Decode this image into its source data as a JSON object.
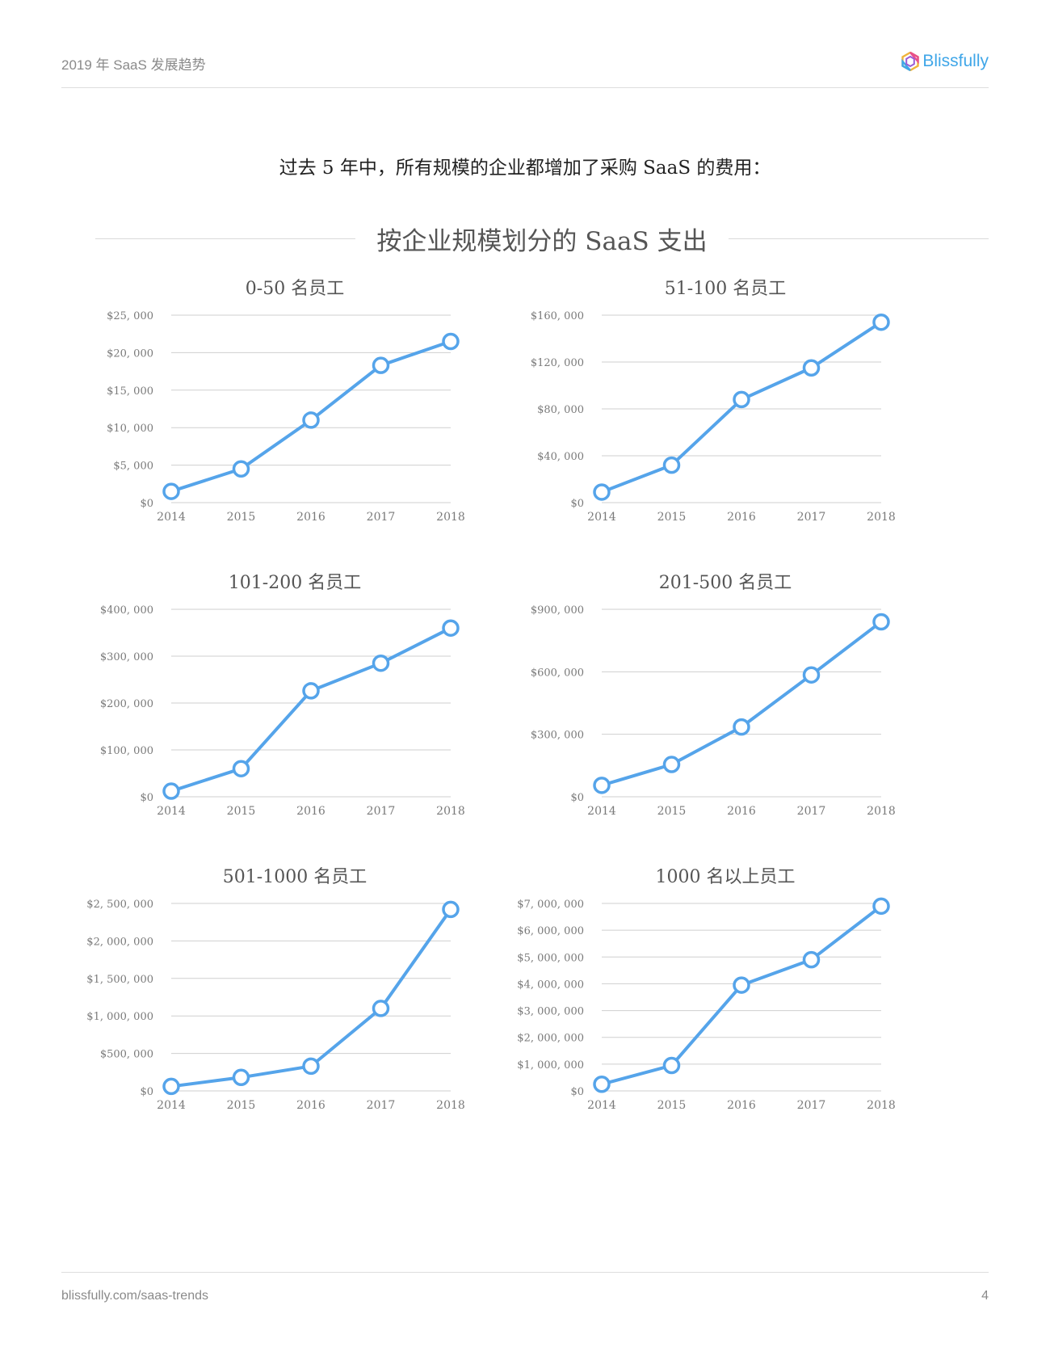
{
  "header": {
    "title": "2019 年 SaaS 发展趋势",
    "logo_text": "Blissfully"
  },
  "intro_text": "过去 5 年中，所有规模的企业都增加了采购 SaaS 的费用：",
  "section_title": "按企业规模划分的 SaaS 支出",
  "colors": {
    "line": "#55a4ea",
    "grid": "#cfcfcf",
    "axis_text": "#7a7a7a",
    "title_text": "#555555"
  },
  "chart_data": [
    {
      "type": "line",
      "title": "0-50 名员工",
      "categories": [
        "2014",
        "2015",
        "2016",
        "2017",
        "2018"
      ],
      "values": [
        1500,
        4500,
        11000,
        18300,
        21500
      ],
      "ylim": [
        0,
        25000
      ],
      "ytick_values": [
        0,
        5000,
        10000,
        15000,
        20000,
        25000
      ],
      "yticks": [
        "$0",
        "$5, 000",
        "$10, 000",
        "$15, 000",
        "$20, 000",
        "$25, 000"
      ]
    },
    {
      "type": "line",
      "title": "51-100 名员工",
      "categories": [
        "2014",
        "2015",
        "2016",
        "2017",
        "2018"
      ],
      "values": [
        9000,
        32000,
        88000,
        115000,
        154000
      ],
      "ylim": [
        0,
        160000
      ],
      "ytick_values": [
        0,
        40000,
        80000,
        120000,
        160000
      ],
      "yticks": [
        "$0",
        "$40, 000",
        "$80, 000",
        "$120, 000",
        "$160, 000"
      ]
    },
    {
      "type": "line",
      "title": "101-200 名员工",
      "categories": [
        "2014",
        "2015",
        "2016",
        "2017",
        "2018"
      ],
      "values": [
        12000,
        60000,
        226000,
        285000,
        360000
      ],
      "ylim": [
        0,
        400000
      ],
      "ytick_values": [
        0,
        100000,
        200000,
        300000,
        400000
      ],
      "yticks": [
        "$0",
        "$100, 000",
        "$200, 000",
        "$300, 000",
        "$400, 000"
      ]
    },
    {
      "type": "line",
      "title": "201-500 名员工",
      "categories": [
        "2014",
        "2015",
        "2016",
        "2017",
        "2018"
      ],
      "values": [
        55000,
        155000,
        335000,
        585000,
        840000
      ],
      "ylim": [
        0,
        900000
      ],
      "ytick_values": [
        0,
        300000,
        600000,
        900000
      ],
      "yticks": [
        "$0",
        "$300, 000",
        "$600, 000",
        "$900, 000"
      ]
    },
    {
      "type": "line",
      "title": "501-1000 名员工",
      "categories": [
        "2014",
        "2015",
        "2016",
        "2017",
        "2018"
      ],
      "values": [
        60000,
        180000,
        330000,
        1100000,
        2420000
      ],
      "ylim": [
        0,
        2500000
      ],
      "ytick_values": [
        0,
        500000,
        1000000,
        1500000,
        2000000,
        2500000
      ],
      "yticks": [
        "$0",
        "$500, 000",
        "$1, 000, 000",
        "$1, 500, 000",
        "$2, 000, 000",
        "$2, 500, 000"
      ]
    },
    {
      "type": "line",
      "title": "1000 名以上员工",
      "categories": [
        "2014",
        "2015",
        "2016",
        "2017",
        "2018"
      ],
      "values": [
        250000,
        950000,
        3950000,
        4900000,
        6900000
      ],
      "ylim": [
        0,
        7000000
      ],
      "ytick_values": [
        0,
        1000000,
        2000000,
        3000000,
        4000000,
        5000000,
        6000000,
        7000000
      ],
      "yticks": [
        "$0",
        "$1, 000, 000",
        "$2, 000, 000",
        "$3, 000, 000",
        "$4, 000, 000",
        "$5, 000, 000",
        "$6, 000, 000",
        "$7, 000, 000"
      ]
    }
  ],
  "footer": {
    "url": "blissfully.com/saas-trends",
    "page_number": "4"
  }
}
